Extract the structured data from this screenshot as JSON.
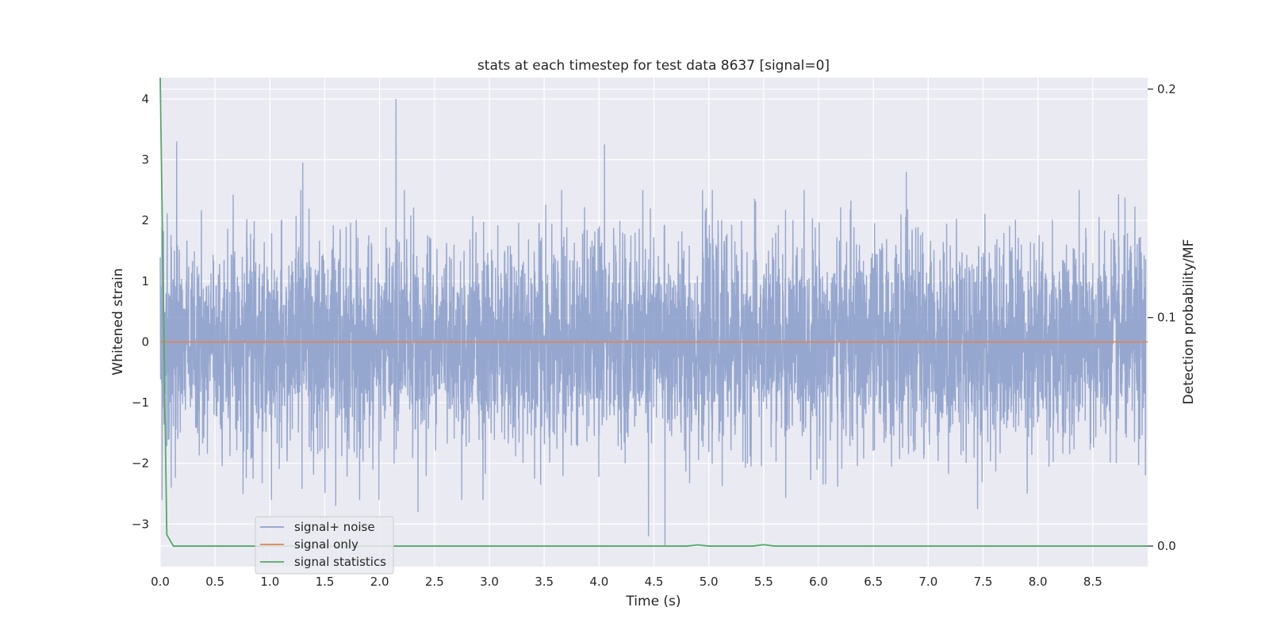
{
  "chart_data": {
    "type": "line",
    "title": "stats at each timestep for test data 8637 [signal=0]",
    "xlabel": "Time (s)",
    "ylabel": "Whitened strain",
    "ylabel_right": "Detection probability/MF",
    "xlim": [
      0.0,
      9.0
    ],
    "ylim": [
      -3.7,
      4.35
    ],
    "ylim_right": [
      -0.009,
      0.205
    ],
    "x_ticks": [
      "0.0",
      "0.5",
      "1.0",
      "1.5",
      "2.0",
      "2.5",
      "3.0",
      "3.5",
      "4.0",
      "4.5",
      "5.0",
      "5.5",
      "6.0",
      "6.5",
      "7.0",
      "7.5",
      "8.0",
      "8.5"
    ],
    "y_ticks": [
      "4",
      "3",
      "2",
      "1",
      "0",
      "−1",
      "−2",
      "−3"
    ],
    "y_ticks_right": [
      "0.2",
      "0.1",
      "0.0"
    ],
    "grid": true,
    "legend_position": "lower-left",
    "series": [
      {
        "name": "signal+ noise",
        "axis": "left",
        "color": "#8da0cb",
        "description_type": "white-noise strain, approx. amplitude within [-3.4, 4.0]",
        "peaks_x": [
          0.15,
          1.3,
          2.15,
          4.05,
          6.8
        ],
        "peaks_y": [
          3.3,
          2.95,
          4.0,
          3.25,
          2.8
        ],
        "troughs_x": [
          0.1,
          1.6,
          2.35,
          4.45,
          4.6,
          7.45
        ],
        "troughs_y": [
          -2.4,
          -2.7,
          -2.8,
          -3.2,
          -3.35,
          -2.75
        ]
      },
      {
        "name": "signal only",
        "axis": "left",
        "color": "#dd8452",
        "x": [
          0.0,
          9.0
        ],
        "y": [
          0.0,
          0.0
        ]
      },
      {
        "name": "signal statistics",
        "axis": "right",
        "color": "#55a868",
        "x": [
          0.0,
          0.06,
          0.12,
          0.5,
          1.0,
          2.0,
          3.0,
          4.0,
          4.8,
          4.9,
          5.0,
          5.4,
          5.5,
          5.6,
          6.0,
          7.0,
          8.0,
          9.0
        ],
        "y": [
          0.205,
          0.005,
          0.0,
          0.0,
          0.0,
          0.0,
          0.0,
          0.0,
          0.0,
          0.0005,
          0.0,
          0.0,
          0.0006,
          0.0,
          0.0,
          0.0,
          0.0,
          0.0
        ]
      }
    ]
  }
}
